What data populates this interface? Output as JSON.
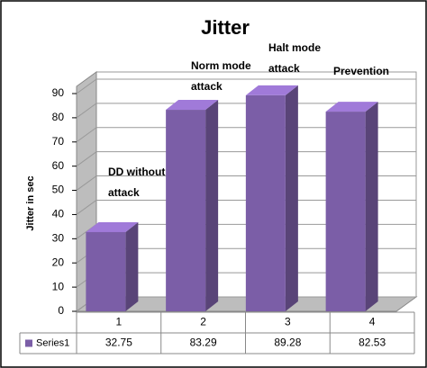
{
  "chart_data": {
    "type": "bar3d",
    "title": "Jitter",
    "y_label": "Jitter in sec",
    "categories": [
      "1",
      "2",
      "3",
      "4"
    ],
    "series": [
      {
        "name": "Series1",
        "color": "#7b5ea7",
        "values": [
          32.75,
          83.29,
          89.28,
          82.53
        ]
      }
    ],
    "annotations": [
      [
        "DD without",
        "attack"
      ],
      [
        "Norm mode",
        "attack"
      ],
      [
        "Halt mode",
        "attack"
      ],
      [
        "Prevention"
      ]
    ],
    "ylim": [
      0,
      90
    ],
    "yticks": [
      0,
      10,
      20,
      30,
      40,
      50,
      60,
      70,
      80,
      90
    ],
    "grid": true
  }
}
